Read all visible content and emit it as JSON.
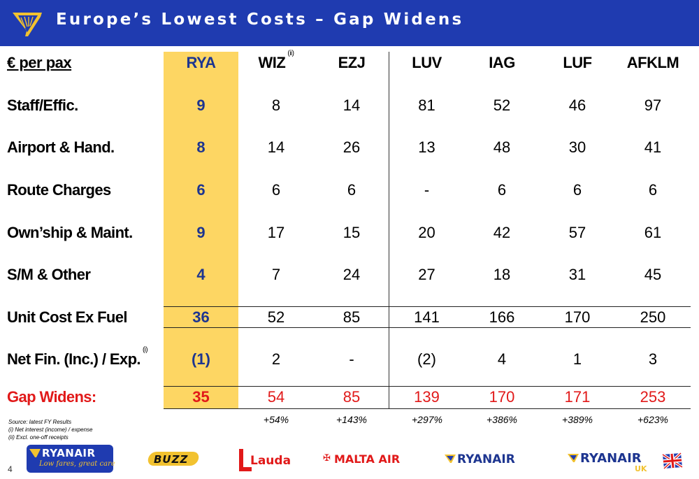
{
  "header": {
    "title": "Europe’s Lowest Costs – Gap Widens"
  },
  "table": {
    "row_label_header": "€ per pax",
    "columns": [
      "RYA",
      "WIZ",
      "EZJ",
      "LUV",
      "IAG",
      "LUF",
      "AFKLM"
    ],
    "wiz_note": "(ii)",
    "rows": [
      {
        "label": "Staff/Effic.",
        "values": [
          "9",
          "8",
          "14",
          "81",
          "52",
          "46",
          "97"
        ]
      },
      {
        "label": "Airport & Hand.",
        "values": [
          "8",
          "14",
          "26",
          "13",
          "48",
          "30",
          "41"
        ]
      },
      {
        "label": "Route Charges",
        "values": [
          "6",
          "6",
          "6",
          "-",
          "6",
          "6",
          "6"
        ]
      },
      {
        "label": "Own’ship & Maint.",
        "values": [
          "9",
          "17",
          "15",
          "20",
          "42",
          "57",
          "61"
        ]
      },
      {
        "label": "S/M & Other",
        "values": [
          "4",
          "7",
          "24",
          "27",
          "18",
          "31",
          "45"
        ]
      },
      {
        "label": "Unit Cost Ex Fuel",
        "values": [
          "36",
          "52",
          "85",
          "141",
          "166",
          "170",
          "250"
        ]
      },
      {
        "label": "Net Fin. (Inc.) / Exp.",
        "note": "(i)",
        "values": [
          "(1)",
          "2",
          "-",
          "(2)",
          "4",
          "1",
          "3"
        ]
      },
      {
        "label": "Gap Widens:",
        "values": [
          "35",
          "54",
          "85",
          "139",
          "170",
          "171",
          "253"
        ]
      }
    ],
    "percentages": [
      "+54%",
      "+143%",
      "+297%",
      "+386%",
      "+389%",
      "+623%"
    ]
  },
  "footnotes": {
    "source": "Source: latest FY Results",
    "note_i": "(i) Net interest (income) / expense",
    "note_ii": "(ii) Excl. one-off receipts"
  },
  "page_number": "4",
  "logos": {
    "ryanair_group": {
      "name": "RYANAIR",
      "tagline": "Low fares, great care"
    },
    "buzz": "BUZZ",
    "lauda": "Lauda",
    "malta_air": "MALTA AIR",
    "ryanair": "RYANAIR",
    "ryanair_uk": {
      "name": "RYANAIR",
      "suffix": "UK"
    }
  },
  "colors": {
    "header_blue": "#1f3bb0",
    "rya_highlight": "#fdd663",
    "rya_text": "#1d3590",
    "gap_red": "#e11919"
  }
}
